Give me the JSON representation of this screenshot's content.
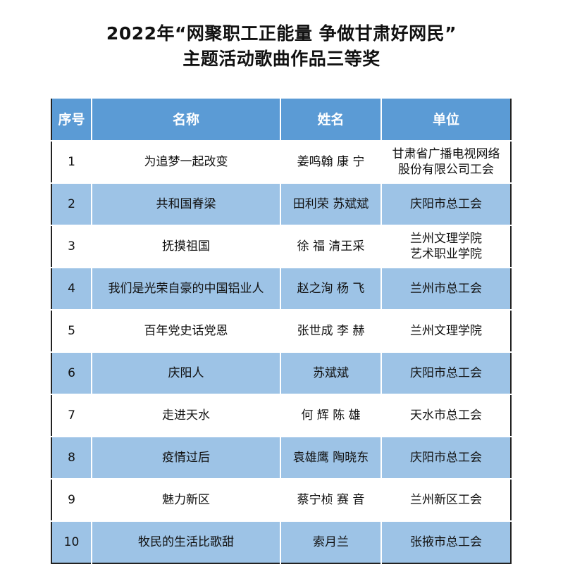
{
  "title": {
    "line1": "2022年“网聚职工正能量 争做甘肃好网民”",
    "line2": "主题活动歌曲作品三等奖"
  },
  "colors": {
    "header": "#5b9bd5",
    "alt_row": "#9dc3e6"
  },
  "table": {
    "headers": [
      "序号",
      "名称",
      "姓名",
      "单位"
    ],
    "rows": [
      {
        "no": "1",
        "name": "为追梦一起改变",
        "author": "姜鸣翰  康  宁",
        "unit": "甘肃省广播电视网络\n股份有限公司工会"
      },
      {
        "no": "2",
        "name": "共和国脊梁",
        "author": "田利荣 苏斌斌",
        "unit": "庆阳市总工会"
      },
      {
        "no": "3",
        "name": "抚摸祖国",
        "author": "徐  福 清王采",
        "unit": "兰州文理学院\n艺术职业学院"
      },
      {
        "no": "4",
        "name": "我们是光荣自豪的中国铝业人",
        "author": "赵之洵 杨  飞",
        "unit": "兰州市总工会"
      },
      {
        "no": "5",
        "name": "百年党史话党恩",
        "author": "张世成 李  赫",
        "unit": "兰州文理学院"
      },
      {
        "no": "6",
        "name": "庆阳人",
        "author": "苏斌斌",
        "unit": "庆阳市总工会"
      },
      {
        "no": "7",
        "name": "走进天水",
        "author": "何  辉 陈  雄",
        "unit": "天水市总工会"
      },
      {
        "no": "8",
        "name": "疫情过后",
        "author": "袁雄鹰 陶晓东",
        "unit": "庆阳市总工会"
      },
      {
        "no": "9",
        "name": "魅力新区",
        "author": "蔡宁桢  赛  音",
        "unit": "兰州新区工会"
      },
      {
        "no": "10",
        "name": "牧民的生活比歌甜",
        "author": "索月兰",
        "unit": "张掖市总工会"
      }
    ]
  }
}
